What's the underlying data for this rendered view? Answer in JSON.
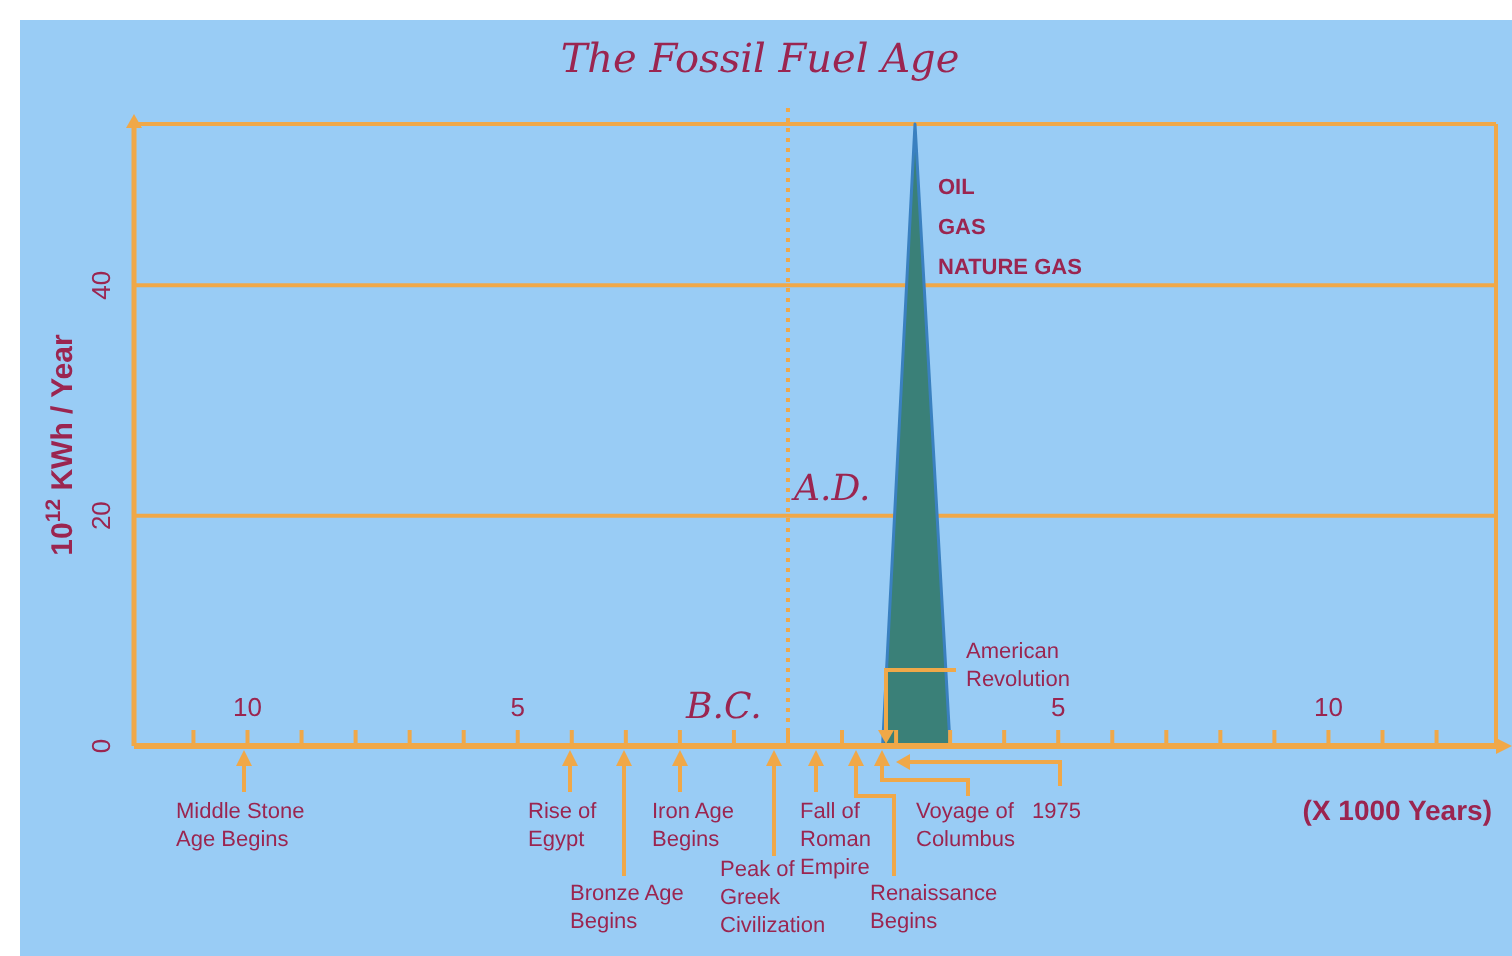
{
  "chart_data": {
    "type": "area",
    "title": "The Fossil Fuel Age",
    "xlabel": "(X 1000 Years)",
    "ylabel": "10$^{12}$ KWh / Year",
    "x": [
      1.75,
      2.35,
      3.0
    ],
    "series": [
      {
        "color": "#3a8078",
        "values": [
          0,
          54,
          0
        ]
      }
    ],
    "xlim": [
      -12.1,
      13.1
    ],
    "ylim": [
      0,
      54
    ],
    "xticks": [
      {
        "value": -11,
        "label": null
      },
      {
        "value": -10,
        "label": "10"
      },
      {
        "value": -9,
        "label": null
      },
      {
        "value": -8,
        "label": null
      },
      {
        "value": -7,
        "label": null
      },
      {
        "value": -6,
        "label": null
      },
      {
        "value": -5,
        "label": "5"
      },
      {
        "value": -4,
        "label": null
      },
      {
        "value": -3,
        "label": null
      },
      {
        "value": -2,
        "label": null
      },
      {
        "value": -1,
        "label": null
      },
      {
        "value": 0,
        "label": null
      },
      {
        "value": 1,
        "label": null
      },
      {
        "value": 2,
        "label": null
      },
      {
        "value": 3,
        "label": null
      },
      {
        "value": 4,
        "label": null
      },
      {
        "value": 5,
        "label": "5"
      },
      {
        "value": 6,
        "label": null
      },
      {
        "value": 7,
        "label": null
      },
      {
        "value": 8,
        "label": null
      },
      {
        "value": 9,
        "label": null
      },
      {
        "value": 10,
        "label": "10"
      },
      {
        "value": 11,
        "label": null
      },
      {
        "value": 12,
        "label": null
      }
    ],
    "yticks": [
      0,
      20,
      40
    ],
    "grid": "y",
    "ref_lines": [
      {
        "axis": "x",
        "value": 0,
        "line_style": "dotted",
        "color": "#f0a848"
      }
    ],
    "annotations": [
      "Middle Stone\nAge Begins",
      "Rise of\nEgypt",
      "Bronze Age\nBegins",
      "Iron  Age\nBegins",
      "Peak of\nGreek\nCivilization",
      "Fall of\nRoman\nEmpire",
      "Renaissance\nBegins",
      "Voyage of\nColumbus",
      "1975",
      "American\nRevolution",
      "B.C.",
      "A.D.",
      "OIL",
      "GAS",
      "NATURE GAS"
    ]
  }
}
